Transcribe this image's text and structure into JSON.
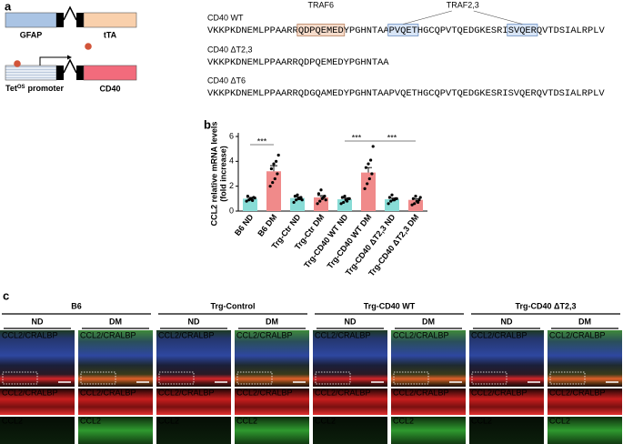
{
  "panel_a": {
    "label": "a",
    "construct_1": {
      "promoter": "GFAP",
      "gene": "tTA"
    },
    "construct_2": {
      "promoter_prefix": "Tet",
      "promoter_sup": "OS",
      "promoter_suffix": "promoter",
      "gene": "CD40"
    },
    "traf_labels": [
      "TRAF6",
      "TRAF2,3"
    ],
    "sequences": [
      {
        "name": "CD40 WT",
        "segments": [
          {
            "text": "VKKPKDNEMLPPAARR"
          },
          {
            "text": "QDPQEMED",
            "boxed": true,
            "box_color": "#f6dccb",
            "box_stroke": "#b9815f"
          },
          {
            "text": "YPGHNTAA"
          },
          {
            "text": "PVQET",
            "boxed": true,
            "box_color": "#d8e5f6",
            "box_stroke": "#6f92c4"
          },
          {
            "text": "HGCQPVTQEDGKESRI"
          },
          {
            "text": "SVQER",
            "boxed": true,
            "box_color": "#d8e5f6",
            "box_stroke": "#6f92c4"
          },
          {
            "text": "QVTDSIALRPLV"
          }
        ]
      },
      {
        "name": "CD40 ΔT2,3",
        "segments": [
          {
            "text": "VKKPKDNEMLPPAARRQDPQEMEDYPGHNTAA"
          }
        ]
      },
      {
        "name": "CD40 ΔT6",
        "segments": [
          {
            "text": "VKKPKDNEMLPPAARRQD"
          },
          {
            "text": "GQA",
            "color": "#e0201f"
          },
          {
            "text": "MEDYPGHNTAAPVQETHGCQPVTQEDGKESRISVQERQVTDSIALRPLV"
          }
        ]
      }
    ]
  },
  "chart_data": {
    "type": "bar",
    "label": "b",
    "y_label": [
      "CCL2 relative mRNA levels",
      "(fold increase)"
    ],
    "categories": [
      "B6 ND",
      "B6 DM",
      "Trg-Ctr ND",
      "Trg-Ctr DM",
      "Trg-CD40 WT ND",
      "Trg-CD40 WT DM",
      "Trg-CD40 ΔT2,3 ND",
      "Trg-CD40 ΔT2,3 DM"
    ],
    "values": [
      1.0,
      3.2,
      1.05,
      1.1,
      0.95,
      3.1,
      0.95,
      0.9
    ],
    "errors": [
      0.1,
      0.45,
      0.1,
      0.15,
      0.1,
      0.4,
      0.1,
      0.1
    ],
    "points": [
      [
        0.8,
        0.9,
        1.0,
        1.1,
        1.2,
        0.95,
        0.85,
        1.05
      ],
      [
        2.0,
        2.3,
        2.6,
        3.0,
        3.4,
        3.8,
        4.0,
        4.5
      ],
      [
        0.7,
        0.9,
        1.0,
        1.1,
        1.2,
        1.3,
        1.0,
        0.9
      ],
      [
        0.6,
        0.8,
        1.0,
        1.2,
        1.4,
        1.7,
        1.1,
        0.9
      ],
      [
        0.6,
        0.7,
        0.9,
        1.0,
        1.1,
        1.2,
        0.8,
        1.0
      ],
      [
        1.8,
        2.2,
        2.6,
        3.0,
        3.5,
        3.8,
        4.1,
        5.2
      ],
      [
        0.6,
        0.8,
        0.9,
        1.0,
        1.1,
        1.3,
        0.9,
        1.0
      ],
      [
        0.5,
        0.6,
        0.8,
        0.9,
        1.0,
        1.2,
        0.7,
        1.1
      ]
    ],
    "colors": [
      "#88dcd6",
      "#f08a8a",
      "#88dcd6",
      "#f08a8a",
      "#88dcd6",
      "#f08a8a",
      "#88dcd6",
      "#f08a8a"
    ],
    "ylim": [
      0,
      6
    ],
    "yticks": [
      0,
      2,
      4,
      6
    ],
    "annotations": [
      {
        "text": "***",
        "between": [
          "B6 ND",
          "B6 DM"
        ]
      },
      {
        "text": "***",
        "between": [
          "Trg-CD40 WT ND",
          "Trg-CD40 WT DM"
        ]
      },
      {
        "text": "***",
        "between": [
          "Trg-CD40 WT DM",
          "Trg-CD40 ΔT2,3 DM"
        ]
      }
    ]
  },
  "panel_c": {
    "label": "c",
    "conditions": [
      "ND",
      "DM"
    ],
    "stain_green": "CCL2",
    "stain_red": "/CRALBP",
    "groups": [
      "B6",
      "Trg-Control",
      "Trg-CD40 WT",
      "Trg-CD40 ΔT2,3"
    ]
  }
}
